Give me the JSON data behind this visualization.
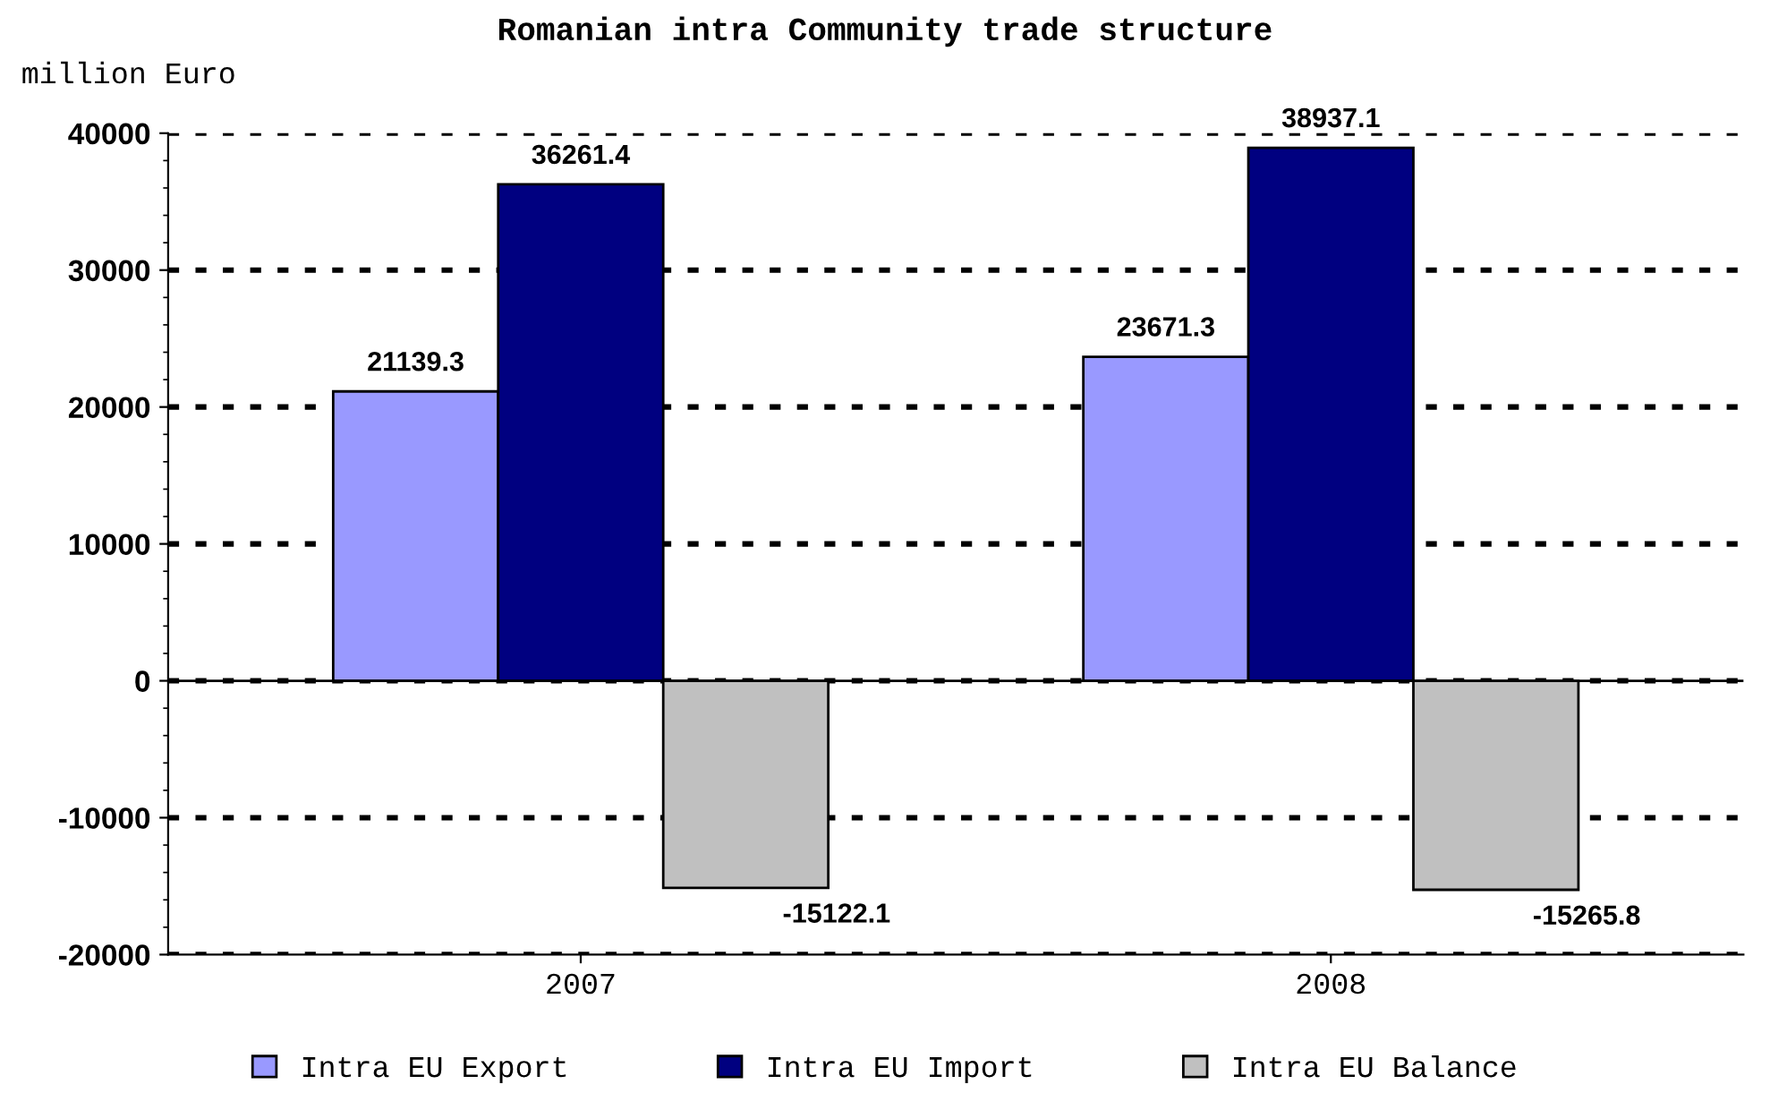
{
  "chart_data": {
    "type": "bar",
    "title": "Romanian intra Community trade structure",
    "ylabel": "million Euro",
    "categories": [
      "2007",
      "2008"
    ],
    "series": [
      {
        "name": "Intra EU Export",
        "color": "#9999ff",
        "values": [
          21139.3,
          23671.3
        ]
      },
      {
        "name": "Intra EU Import",
        "color": "#000080",
        "values": [
          36261.4,
          38937.1
        ]
      },
      {
        "name": "Intra EU Balance",
        "color": "#c0c0c0",
        "values": [
          -15122.1,
          -15265.8
        ]
      }
    ],
    "ylim": [
      -20000,
      40000
    ],
    "yticks": [
      -20000,
      -10000,
      0,
      10000,
      20000,
      30000,
      40000
    ],
    "grid": "y",
    "legend": "bottom",
    "data_labels": true
  }
}
